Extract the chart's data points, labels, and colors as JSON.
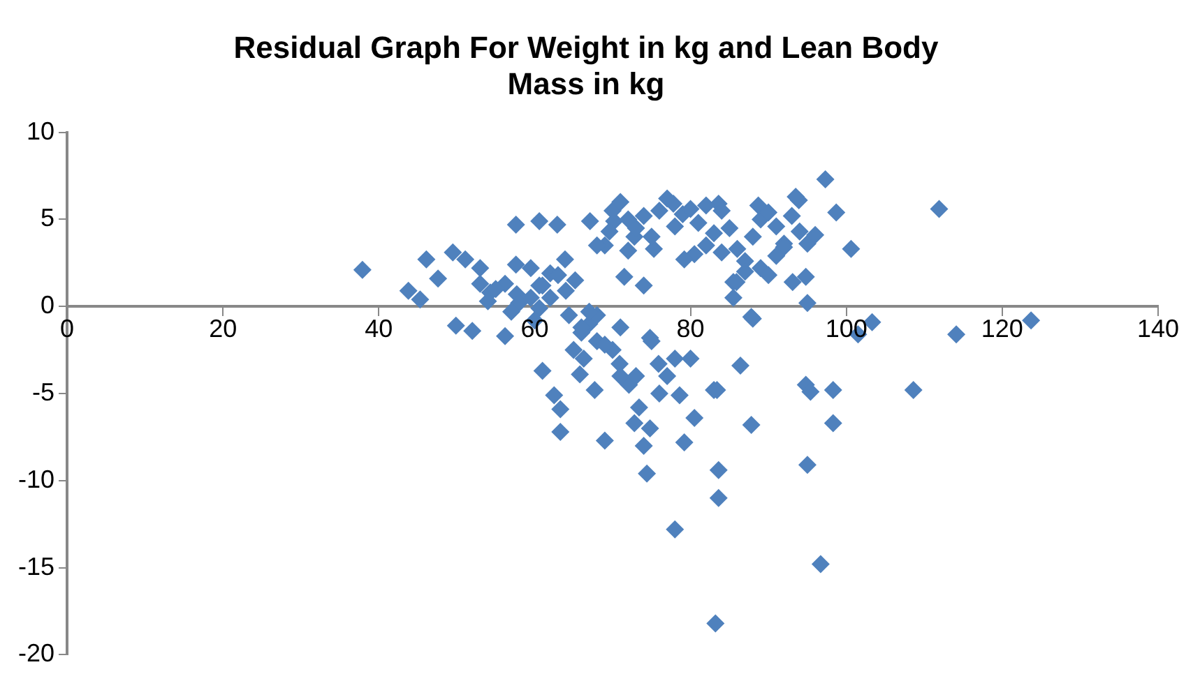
{
  "chart_data": {
    "type": "scatter",
    "title": "Residual Graph For Weight in kg and Lean Body Mass in kg",
    "marker": "diamond",
    "xlim": [
      0,
      140
    ],
    "ylim": [
      -20,
      10
    ],
    "xticks": [
      0,
      20,
      40,
      60,
      80,
      100,
      120,
      140
    ],
    "yticks": [
      -20,
      -15,
      -10,
      -5,
      0,
      5,
      10
    ],
    "series": [
      {
        "color": "#4f81bd",
        "x": [
          37.9,
          43.8,
          45.3,
          46.1,
          47.6,
          49.5,
          51.1,
          53.0,
          53.0,
          54.3,
          57.6,
          60.6,
          62.9,
          57.6,
          59.5,
          62.0,
          56.2,
          57.7,
          49.9,
          52.0,
          56.2,
          60.6,
          63.9,
          65.2,
          67.1,
          64.4,
          60.6,
          59.5,
          61.0,
          62.5,
          63.3,
          63.3,
          69.0,
          74.4,
          78.0,
          83.2,
          83.0,
          83.6,
          83.6,
          79.2,
          80.5,
          78.6,
          74.0,
          74.8,
          72.8,
          73.4,
          72.1,
          67.7,
          65.8,
          66.3,
          74.8,
          75.9,
          70.9,
          70.2,
          71.5,
          74.0,
          77.8,
          83.6,
          80.5,
          85.5,
          85.5,
          87.8,
          93.9,
          97.3,
          88.7,
          92.0,
          94.8,
          93.1,
          95.0,
          98.7,
          100.6,
          69.6,
          72.8,
          75.3,
          79.2,
          111.9,
          123.7,
          114.1,
          103.3,
          101.5,
          108.6,
          98.3,
          94.8,
          95.4,
          98.3,
          95.0,
          96.7,
          86.4,
          87.8,
          83.4,
          88.0,
          85.9,
          93.5,
          67,
          68,
          66,
          70,
          71,
          73,
          75,
          76,
          77,
          78,
          80,
          69,
          72,
          68,
          68,
          70,
          71,
          72,
          73,
          74,
          75,
          76,
          77,
          78,
          79,
          80,
          81,
          82,
          83,
          84,
          85,
          86,
          87,
          88,
          89,
          90,
          91,
          92,
          93,
          94,
          95,
          96,
          89,
          90,
          91,
          87,
          84,
          82,
          61,
          62,
          63,
          64,
          60,
          58,
          57,
          55,
          54,
          65,
          66,
          67,
          69,
          71
        ],
        "values": [
          2.1,
          0.9,
          0.4,
          2.7,
          1.6,
          3.1,
          2.7,
          2.2,
          1.3,
          0.8,
          4.7,
          4.9,
          4.7,
          2.4,
          2.2,
          1.9,
          1.3,
          0.7,
          -1.1,
          -1.4,
          -1.7,
          1.2,
          2.7,
          1.5,
          4.9,
          -0.5,
          -0.1,
          0.5,
          -3.7,
          -5.1,
          -5.9,
          -7.2,
          -7.7,
          -9.6,
          -12.8,
          -18.2,
          -4.8,
          -9.4,
          -11.0,
          -7.8,
          -6.4,
          -5.1,
          -8.0,
          -7.0,
          -6.7,
          -5.8,
          -4.5,
          -4.8,
          -3.9,
          -3.0,
          -1.8,
          -3.3,
          -3.3,
          4.9,
          1.7,
          1.2,
          5.9,
          5.9,
          3.0,
          1.4,
          0.5,
          -0.6,
          6.1,
          7.3,
          5.8,
          3.6,
          1.7,
          1.4,
          0.2,
          5.4,
          3.3,
          4.3,
          4.0,
          3.3,
          2.7,
          5.6,
          -0.8,
          -1.6,
          -0.9,
          -1.6,
          -4.8,
          -4.8,
          -4.5,
          -4.9,
          -6.7,
          -9.1,
          -14.8,
          -3.4,
          -6.8,
          -4.8,
          -0.7,
          1.4,
          6.3,
          -1,
          -2,
          -1.5,
          -2.5,
          -4,
          -4,
          -2,
          -5,
          -4,
          -3,
          -3,
          3.5,
          3.2,
          -0.5,
          3.5,
          5.5,
          6,
          5,
          4.5,
          5.2,
          4,
          5.5,
          6.2,
          4.6,
          5.3,
          5.6,
          4.8,
          3.5,
          4.2,
          3.1,
          4.5,
          3.3,
          2.6,
          4,
          5,
          5.4,
          4.6,
          3.4,
          5.2,
          4.3,
          3.6,
          4.1,
          2.2,
          1.8,
          2.9,
          2,
          5.5,
          5.8,
          1.2,
          0.5,
          1.8,
          0.9,
          -0.8,
          0.2,
          -0.3,
          1,
          0.3,
          -2.5,
          -1.2,
          -0.3,
          -2.2,
          -1.2
        ]
      }
    ]
  }
}
